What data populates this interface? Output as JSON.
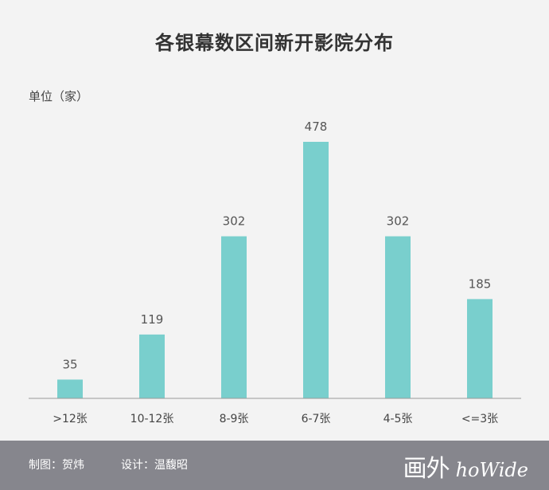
{
  "chart_data": {
    "type": "bar",
    "title": "各银幕数区间新开影院分布",
    "unit_label": "单位（家）",
    "categories": [
      ">12张",
      "10-12张",
      "8-9张",
      "6-7张",
      "4-5张",
      "<=3张"
    ],
    "values": [
      35,
      119,
      302,
      478,
      302,
      185
    ],
    "bar_color": "#79cfcd",
    "ylim": [
      0,
      478
    ],
    "grid": false,
    "legend": "none"
  },
  "footer": {
    "maker": "制图：贺炜",
    "designer": "设计：温馥昭",
    "brand_cn": "画外",
    "brand_en": "hoWide",
    "background": "#86868d"
  }
}
